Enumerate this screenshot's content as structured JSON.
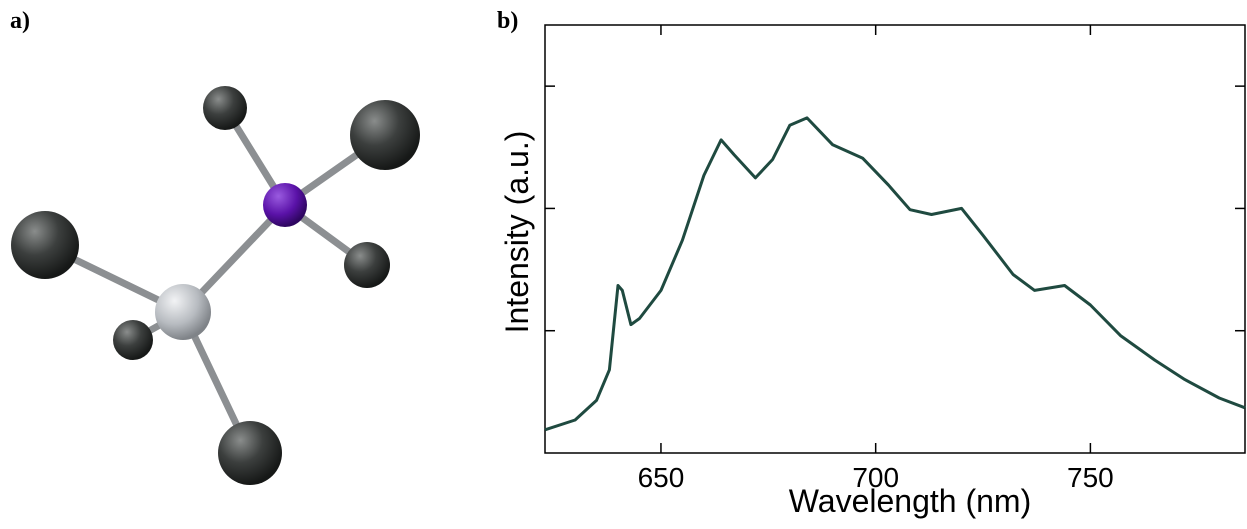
{
  "panel_labels": [
    "a)",
    "b)"
  ],
  "chart_data": {
    "type": "line",
    "xlabel": "Wavelength (nm)",
    "ylabel": "Intensity (a.u.)",
    "xlim": [
      623,
      786
    ],
    "xticks": [
      650,
      700,
      750
    ],
    "ylim": [
      0,
      3.5
    ],
    "yticks": [
      1,
      2,
      3
    ],
    "series": [
      {
        "color": "#1f4a40",
        "x": [
          623,
          630,
          635,
          638,
          640,
          641,
          643,
          645,
          650,
          655,
          660,
          664,
          667,
          672,
          676,
          680,
          684,
          690,
          697,
          703,
          708,
          713,
          720,
          725,
          732,
          737,
          744,
          750,
          757,
          765,
          772,
          780,
          786
        ],
        "values": [
          0.19,
          0.27,
          0.43,
          0.68,
          1.37,
          1.33,
          1.05,
          1.1,
          1.33,
          1.74,
          2.27,
          2.56,
          2.44,
          2.25,
          2.4,
          2.68,
          2.74,
          2.52,
          2.41,
          2.19,
          1.99,
          1.95,
          2.0,
          1.78,
          1.46,
          1.33,
          1.37,
          1.21,
          0.96,
          0.76,
          0.6,
          0.45,
          0.37
        ]
      }
    ]
  }
}
